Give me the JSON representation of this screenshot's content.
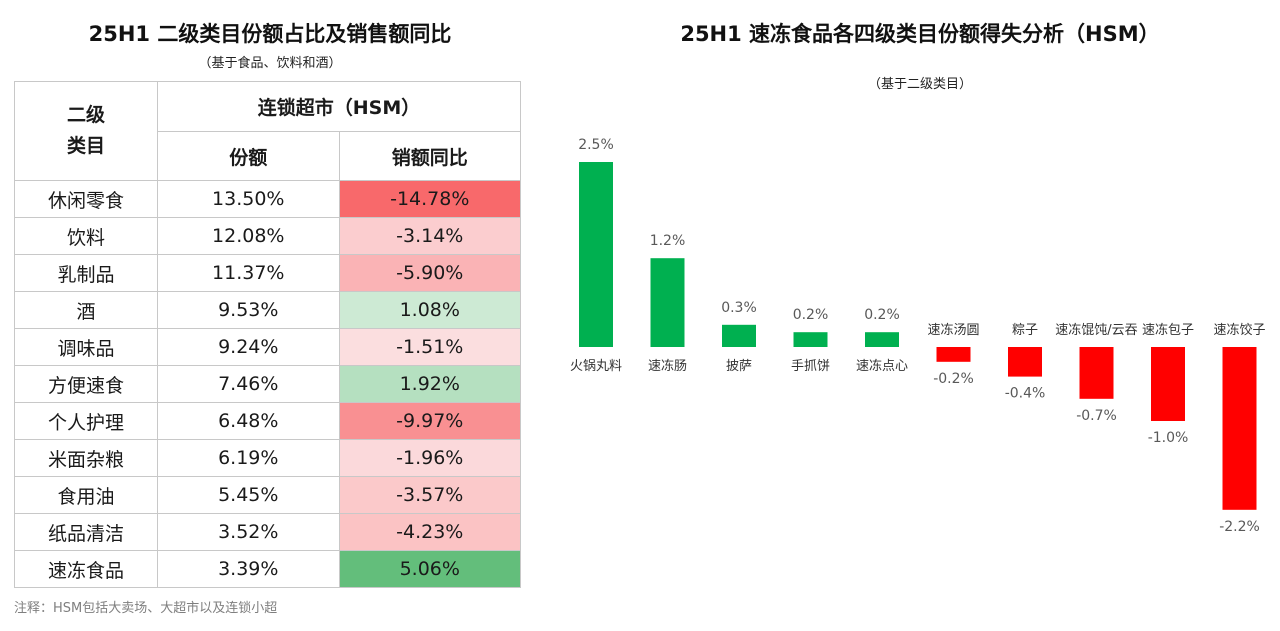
{
  "left": {
    "title": "25H1 二级类目份额占比及销售额同比",
    "subtitle": "（基于食品、饮料和酒）",
    "header": {
      "category": "二级\n类目",
      "group": "连锁超市（HSM）",
      "share": "份额",
      "yoy": "销额同比"
    },
    "rows": [
      {
        "cat": "休闲零食",
        "share": "13.50%",
        "yoy": "-14.78%",
        "yoy_value": -14.78
      },
      {
        "cat": "饮料",
        "share": "12.08%",
        "yoy": "-3.14%",
        "yoy_value": -3.14
      },
      {
        "cat": "乳制品",
        "share": "11.37%",
        "yoy": "-5.90%",
        "yoy_value": -5.9
      },
      {
        "cat": "酒",
        "share": "9.53%",
        "yoy": "1.08%",
        "yoy_value": 1.08
      },
      {
        "cat": "调味品",
        "share": "9.24%",
        "yoy": "-1.51%",
        "yoy_value": -1.51
      },
      {
        "cat": "方便速食",
        "share": "7.46%",
        "yoy": "1.92%",
        "yoy_value": 1.92
      },
      {
        "cat": "个人护理",
        "share": "6.48%",
        "yoy": "-9.97%",
        "yoy_value": -9.97
      },
      {
        "cat": "米面杂粮",
        "share": "6.19%",
        "yoy": "-1.96%",
        "yoy_value": -1.96
      },
      {
        "cat": "食用油",
        "share": "5.45%",
        "yoy": "-3.57%",
        "yoy_value": -3.57
      },
      {
        "cat": "纸品清洁",
        "share": "3.52%",
        "yoy": "-4.23%",
        "yoy_value": -4.23
      },
      {
        "cat": "速冻食品",
        "share": "3.39%",
        "yoy": "5.06%",
        "yoy_value": 5.06
      }
    ],
    "note": "注释：HSM包括大卖场、大超市以及连锁小超"
  },
  "right": {
    "title": "25H1 速冻食品各四级类目份额得失分析（HSM）",
    "subtitle": "（基于二级类目）"
  },
  "colors": {
    "positive_bar": "#00b050",
    "negative_bar": "#ff0000",
    "heat_negative_strong": "#f8696b",
    "heat_positive_strong": "#63be7b"
  },
  "chart_data": {
    "type": "bar",
    "categories": [
      "火锅丸料",
      "速冻肠",
      "披萨",
      "手抓饼",
      "速冻点心",
      "速冻汤圆",
      "粽子",
      "速冻馄饨/云吞",
      "速冻包子",
      "速冻饺子"
    ],
    "values": [
      2.5,
      1.2,
      0.3,
      0.2,
      0.2,
      -0.2,
      -0.4,
      -0.7,
      -1.0,
      -2.2
    ],
    "data_labels": [
      "2.5%",
      "1.2%",
      "0.3%",
      "0.2%",
      "0.2%",
      "-0.2%",
      "-0.4%",
      "-0.7%",
      "-1.0%",
      "-2.2%"
    ],
    "unit": "%",
    "grid": false,
    "legend": "none"
  }
}
